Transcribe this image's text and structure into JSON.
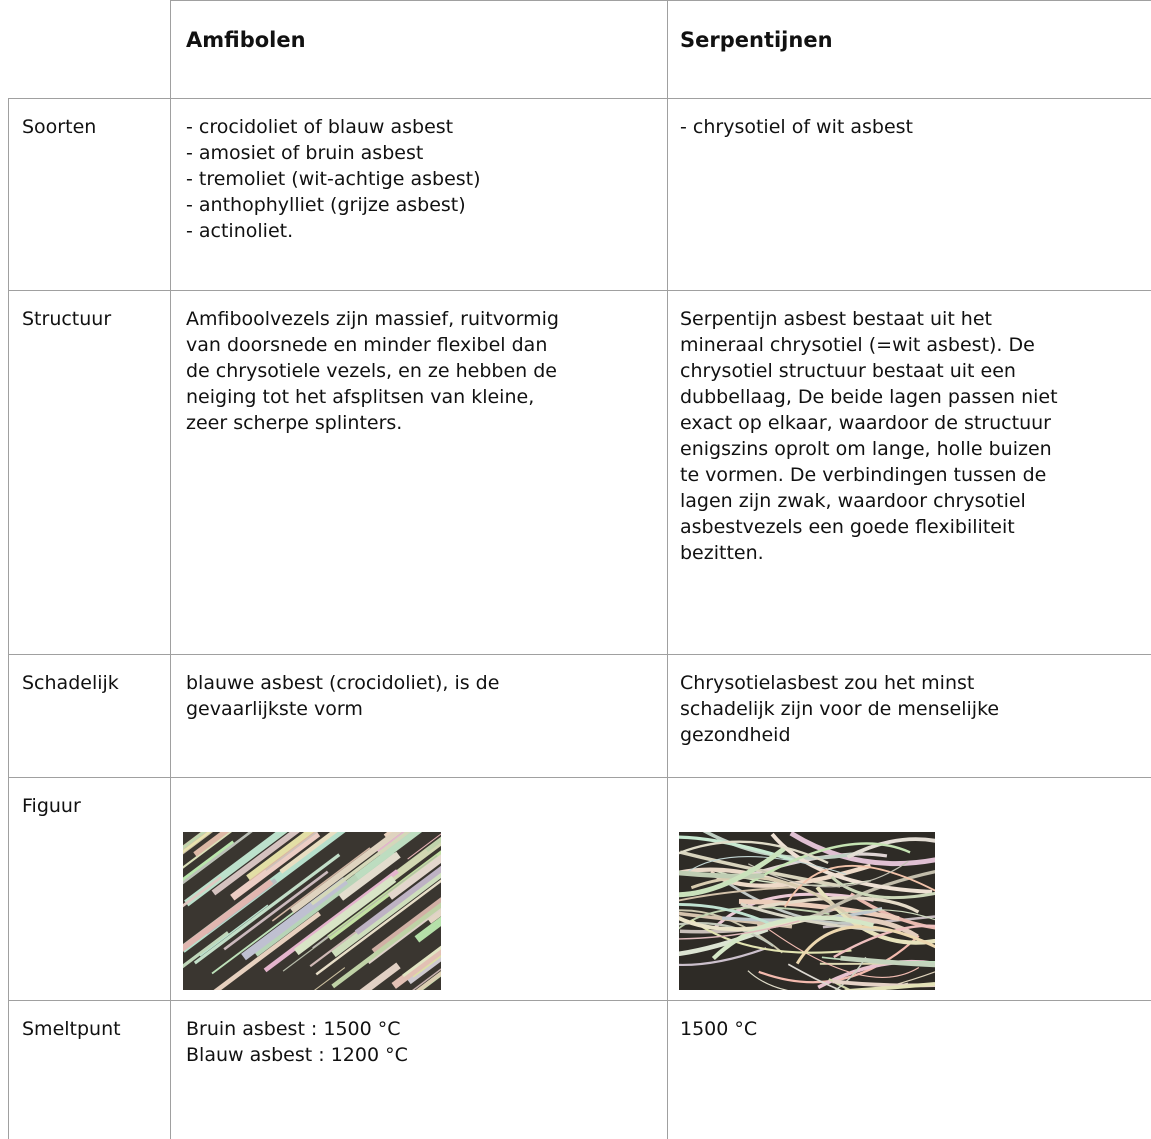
{
  "header": {
    "col1": "Amfibolen",
    "col2": "Serpentijnen"
  },
  "rows": [
    {
      "label": "Soorten",
      "amfibolen": [
        "- crocidoliet of blauw asbest",
        "- amosiet of bruin asbest",
        "- tremoliet (wit-achtige asbest)",
        "- anthophylliet (grijze asbest)",
        "- actinoliet."
      ],
      "serpentijnen": [
        "- chrysotiel of wit asbest"
      ]
    },
    {
      "label": "Structuur",
      "amfibolen": [
        "Amfiboolvezels zijn massief, ruitvormig",
        "van doorsnede en minder flexibel dan",
        "de chrysotiele vezels, en ze hebben de",
        "neiging tot het afsplitsen van kleine,",
        "zeer scherpe splinters."
      ],
      "serpentijnen": [
        "Serpentijn asbest bestaat uit het",
        "mineraal chrysotiel (=wit asbest). De",
        "chrysotiel structuur bestaat uit een",
        "dubbellaag, De beide lagen passen niet",
        "exact op elkaar, waardoor de structuur",
        "enigszins oprolt om lange, holle buizen",
        "te vormen. De verbindingen tussen de",
        "lagen zijn zwak, waardoor chrysotiel",
        "asbestvezels een goede flexibiliteit",
        "bezitten."
      ]
    },
    {
      "label": "Schadelijk",
      "amfibolen": [
        "blauwe asbest (crocidoliet), is de",
        "gevaarlijkste vorm"
      ],
      "serpentijnen": [
        "Chrysotielasbest zou het minst",
        "schadelijk zijn voor de menselijke",
        "gezondheid"
      ]
    },
    {
      "label": "Figuur",
      "amfibolen": [],
      "serpentijnen": []
    },
    {
      "label": "Smeltpunt",
      "amfibolen": [
        "Bruin asbest : 1500 °C",
        "Blauw asbest : 1200 °C"
      ],
      "serpentijnen": [
        "1500 °C"
      ]
    }
  ]
}
